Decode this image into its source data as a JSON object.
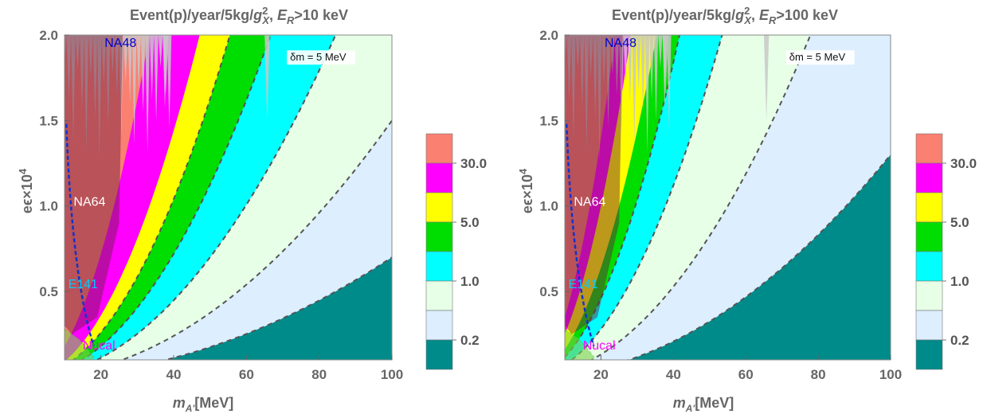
{
  "chart_data": [
    {
      "type": "contour",
      "title_main": "Event(p)/year/5kg/",
      "title_g_sup": "2",
      "title_g_sub": "X",
      "title_sep": ", ",
      "title_er_sub": "R",
      "title_threshold": ">10 keV",
      "xlabel_main": "m",
      "xlabel_sub": "A'",
      "xlabel_units": "[MeV]",
      "ylabel": "eϵ×10",
      "ylabel_sup": "4",
      "xlim": [
        10,
        100
      ],
      "ylim": [
        0.1,
        2.0
      ],
      "xticks": [
        "20",
        "40",
        "60",
        "80",
        "100"
      ],
      "yticks": [
        "0.5",
        "1.0",
        "1.5",
        "2.0"
      ],
      "xtick_values": [
        20,
        40,
        60,
        80,
        100
      ],
      "ytick_values": [
        0.5,
        1.0,
        1.5,
        2.0
      ],
      "dm_note": "δm = 5 MeV",
      "colorbar_labels": [
        "30.0",
        "5.0",
        "1.0",
        "0.2"
      ],
      "colorbar_colors": [
        "#FA8072",
        "#FF00FF",
        "#FFFF00",
        "#00DD00",
        "#00FFFF",
        "#E6FFE6",
        "#DDEEFF",
        "#008B8B"
      ],
      "band_colors": [
        "#FF00FF",
        "#FFFF00",
        "#00DD00",
        "#00FFFF",
        "#E6FFE6",
        "#DDEEFF",
        "#008B8B"
      ],
      "contour_coefficients": [
        0.0018,
        0.0009,
        0.00065,
        0.00045,
        0.00028,
        0.00015,
        7e-05
      ],
      "dashed_contours": [
        2,
        3,
        4,
        5,
        6
      ],
      "experiments": [
        {
          "name": "NA48",
          "color": "#0000CC",
          "at": [
            21,
            1.93
          ]
        },
        {
          "name": "NA64",
          "color": "#FFFFFF",
          "at": [
            12.5,
            1.0
          ]
        },
        {
          "name": "E141",
          "color": "#00CCFF",
          "at": [
            11,
            0.52
          ]
        },
        {
          "name": "Nucal",
          "color": "#FF00FF",
          "at": [
            15,
            0.16
          ]
        }
      ]
    },
    {
      "type": "contour",
      "title_main": "Event(p)/year/5kg/",
      "title_g_sup": "2",
      "title_g_sub": "X",
      "title_sep": ", ",
      "title_er_sub": "R",
      "title_threshold": ">100 keV",
      "xlabel_main": "m",
      "xlabel_sub": "A'",
      "xlabel_units": "[MeV]",
      "ylabel": "eϵ×10",
      "ylabel_sup": "4",
      "xlim": [
        10,
        100
      ],
      "ylim": [
        0.1,
        2.0
      ],
      "xticks": [
        "20",
        "40",
        "60",
        "80",
        "100"
      ],
      "yticks": [
        "0.5",
        "1.0",
        "1.5",
        "2.0"
      ],
      "xtick_values": [
        20,
        40,
        60,
        80,
        100
      ],
      "ytick_values": [
        0.5,
        1.0,
        1.5,
        2.0
      ],
      "dm_note": "δm = 5 MeV",
      "colorbar_labels": [
        "30.0",
        "5.0",
        "1.0",
        "0.2"
      ],
      "colorbar_colors": [
        "#FA8072",
        "#FF00FF",
        "#FFFF00",
        "#00DD00",
        "#00FFFF",
        "#E6FFE6",
        "#DDEEFF",
        "#008B8B"
      ],
      "band_colors": [
        "#FF00FF",
        "#FFFF00",
        "#00DD00",
        "#00FFFF",
        "#E6FFE6",
        "#DDEEFF",
        "#008B8B"
      ],
      "contour_coefficients": [
        0.0035,
        0.0025,
        0.0016,
        0.00115,
        0.0007,
        0.00033,
        0.00013
      ],
      "dashed_contours": [
        3,
        4,
        5,
        6
      ],
      "experiments": [
        {
          "name": "NA48",
          "color": "#0000CC",
          "at": [
            21,
            1.93
          ]
        },
        {
          "name": "NA64",
          "color": "#FFFFFF",
          "at": [
            12.5,
            1.0
          ]
        },
        {
          "name": "E141",
          "color": "#00CCFF",
          "at": [
            11,
            0.52
          ]
        },
        {
          "name": "Nucal",
          "color": "#FF00FF",
          "at": [
            15,
            0.16
          ]
        }
      ]
    }
  ]
}
